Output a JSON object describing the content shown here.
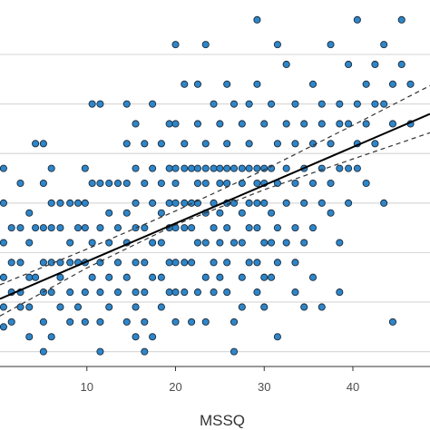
{
  "chart_data": {
    "type": "scatter",
    "xlabel": "MSSQ",
    "ylabel": "",
    "x_ticks": [
      10,
      20,
      30,
      40
    ],
    "xlim": [
      0.2,
      48.7
    ],
    "ylim": [
      -0.3,
      7.1
    ],
    "y_gridlines": [
      0,
      1,
      2,
      3,
      4,
      5,
      6
    ],
    "grid": "horizontal",
    "colors": {
      "point_fill": "#2e86c9",
      "point_stroke": "#1b2a3a",
      "line": "#000000",
      "ci": "#333333",
      "grid": "#d9d9d9",
      "axis": "#333333"
    },
    "regression": {
      "intercept": 1.05,
      "slope": 0.077
    },
    "confidence_band": [
      {
        "x": 0.2,
        "lower": 0.72,
        "upper": 1.35
      },
      {
        "x": 10,
        "lower": 1.69,
        "upper": 2.07
      },
      {
        "x": 20,
        "lower": 2.56,
        "upper": 2.84
      },
      {
        "x": 30,
        "lower": 3.27,
        "upper": 3.67
      },
      {
        "x": 40,
        "lower": 3.89,
        "upper": 4.57
      },
      {
        "x": 48.7,
        "lower": 4.42,
        "upper": 5.37
      }
    ],
    "points": [
      {
        "x": 0.6,
        "y": 3.7
      },
      {
        "x": 0.6,
        "y": 3
      },
      {
        "x": 0.6,
        "y": 2.2
      },
      {
        "x": 0.6,
        "y": 1.5
      },
      {
        "x": 0.6,
        "y": 0.9
      },
      {
        "x": 0.6,
        "y": 0.5
      },
      {
        "x": 1.5,
        "y": 2.5
      },
      {
        "x": 1.5,
        "y": 1.8
      },
      {
        "x": 1.5,
        "y": 1.2
      },
      {
        "x": 1.5,
        "y": 0.6
      },
      {
        "x": 2.5,
        "y": 3.4
      },
      {
        "x": 2.5,
        "y": 2.5
      },
      {
        "x": 2.5,
        "y": 1.8
      },
      {
        "x": 2.5,
        "y": 1.2
      },
      {
        "x": 2.5,
        "y": 0.9
      },
      {
        "x": 3.5,
        "y": 2.8
      },
      {
        "x": 3.5,
        "y": 2.2
      },
      {
        "x": 3.5,
        "y": 1.5
      },
      {
        "x": 3.5,
        "y": 0.9
      },
      {
        "x": 3.5,
        "y": 0.3
      },
      {
        "x": 4.2,
        "y": 4.2
      },
      {
        "x": 4.2,
        "y": 2.5
      },
      {
        "x": 4.2,
        "y": 1.5
      },
      {
        "x": 5.1,
        "y": 4.2
      },
      {
        "x": 5.1,
        "y": 3.4
      },
      {
        "x": 5.1,
        "y": 2.5
      },
      {
        "x": 5.1,
        "y": 1.8
      },
      {
        "x": 5.1,
        "y": 1.2
      },
      {
        "x": 5.1,
        "y": 0.6
      },
      {
        "x": 5.1,
        "y": 0
      },
      {
        "x": 6,
        "y": 3.7
      },
      {
        "x": 6,
        "y": 3
      },
      {
        "x": 6,
        "y": 2.5
      },
      {
        "x": 6,
        "y": 1.8
      },
      {
        "x": 6,
        "y": 1.2
      },
      {
        "x": 6,
        "y": 0.3
      },
      {
        "x": 7,
        "y": 3
      },
      {
        "x": 7,
        "y": 2.5
      },
      {
        "x": 7,
        "y": 1.8
      },
      {
        "x": 7,
        "y": 1.5
      },
      {
        "x": 7,
        "y": 0.9
      },
      {
        "x": 8.1,
        "y": 3
      },
      {
        "x": 8.1,
        "y": 2.2
      },
      {
        "x": 8.1,
        "y": 1.8
      },
      {
        "x": 8.1,
        "y": 1.2
      },
      {
        "x": 8.1,
        "y": 0.6
      },
      {
        "x": 9,
        "y": 3
      },
      {
        "x": 9,
        "y": 2.5
      },
      {
        "x": 9,
        "y": 1.8
      },
      {
        "x": 9,
        "y": 0.9
      },
      {
        "x": 9.8,
        "y": 3.7
      },
      {
        "x": 9.8,
        "y": 3
      },
      {
        "x": 9.8,
        "y": 2.5
      },
      {
        "x": 9.8,
        "y": 1.8
      },
      {
        "x": 9.8,
        "y": 1.2
      },
      {
        "x": 9.8,
        "y": 0.6
      },
      {
        "x": 10.6,
        "y": 5
      },
      {
        "x": 10.6,
        "y": 3.4
      },
      {
        "x": 10.6,
        "y": 2.2
      },
      {
        "x": 10.6,
        "y": 1.5
      },
      {
        "x": 11.5,
        "y": 5
      },
      {
        "x": 11.5,
        "y": 3.4
      },
      {
        "x": 11.5,
        "y": 2.5
      },
      {
        "x": 11.5,
        "y": 1.8
      },
      {
        "x": 11.5,
        "y": 1.2
      },
      {
        "x": 11.5,
        "y": 0.6
      },
      {
        "x": 11.5,
        "y": 0
      },
      {
        "x": 12.5,
        "y": 3.4
      },
      {
        "x": 12.5,
        "y": 2.8
      },
      {
        "x": 12.5,
        "y": 2.2
      },
      {
        "x": 12.5,
        "y": 1.5
      },
      {
        "x": 12.5,
        "y": 0.9
      },
      {
        "x": 13.5,
        "y": 3.4
      },
      {
        "x": 13.5,
        "y": 2.5
      },
      {
        "x": 13.5,
        "y": 1.8
      },
      {
        "x": 13.5,
        "y": 1.2
      },
      {
        "x": 14.5,
        "y": 5
      },
      {
        "x": 14.5,
        "y": 4.2
      },
      {
        "x": 14.5,
        "y": 3.4
      },
      {
        "x": 14.5,
        "y": 2.8
      },
      {
        "x": 14.5,
        "y": 2.2
      },
      {
        "x": 14.5,
        "y": 1.5
      },
      {
        "x": 14.5,
        "y": 0.6
      },
      {
        "x": 15.5,
        "y": 4.6
      },
      {
        "x": 15.5,
        "y": 3.7
      },
      {
        "x": 15.5,
        "y": 3
      },
      {
        "x": 15.5,
        "y": 2.5
      },
      {
        "x": 15.5,
        "y": 1.8
      },
      {
        "x": 15.5,
        "y": 1.2
      },
      {
        "x": 15.5,
        "y": 0.9
      },
      {
        "x": 15.5,
        "y": 0.3
      },
      {
        "x": 16.5,
        "y": 4.2
      },
      {
        "x": 16.5,
        "y": 3.4
      },
      {
        "x": 16.5,
        "y": 2.5
      },
      {
        "x": 16.5,
        "y": 1.8
      },
      {
        "x": 16.5,
        "y": 1.2
      },
      {
        "x": 16.5,
        "y": 0.6
      },
      {
        "x": 16.5,
        "y": 0
      },
      {
        "x": 17.4,
        "y": 5
      },
      {
        "x": 17.4,
        "y": 3.7
      },
      {
        "x": 17.4,
        "y": 3
      },
      {
        "x": 17.4,
        "y": 2.2
      },
      {
        "x": 17.4,
        "y": 1.5
      },
      {
        "x": 17.4,
        "y": 0.3
      },
      {
        "x": 18.4,
        "y": 4.2
      },
      {
        "x": 18.4,
        "y": 3.4
      },
      {
        "x": 18.4,
        "y": 2.8
      },
      {
        "x": 18.4,
        "y": 2.2
      },
      {
        "x": 18.4,
        "y": 1.5
      },
      {
        "x": 18.4,
        "y": 0.9
      },
      {
        "x": 19.3,
        "y": 4.6
      },
      {
        "x": 19.3,
        "y": 3.7
      },
      {
        "x": 19.3,
        "y": 3
      },
      {
        "x": 19.3,
        "y": 2.5
      },
      {
        "x": 19.3,
        "y": 1.8
      },
      {
        "x": 19.3,
        "y": 1.2
      },
      {
        "x": 20,
        "y": 6.2
      },
      {
        "x": 20,
        "y": 4.6
      },
      {
        "x": 20,
        "y": 3.7
      },
      {
        "x": 20,
        "y": 3.4
      },
      {
        "x": 20,
        "y": 3
      },
      {
        "x": 20,
        "y": 2.5
      },
      {
        "x": 20,
        "y": 1.8
      },
      {
        "x": 20,
        "y": 1.2
      },
      {
        "x": 20,
        "y": 0.6
      },
      {
        "x": 21,
        "y": 5.4
      },
      {
        "x": 21,
        "y": 4.2
      },
      {
        "x": 21,
        "y": 3.7
      },
      {
        "x": 21,
        "y": 3
      },
      {
        "x": 21,
        "y": 2.5
      },
      {
        "x": 21,
        "y": 1.8
      },
      {
        "x": 21,
        "y": 1.2
      },
      {
        "x": 21.8,
        "y": 3.7
      },
      {
        "x": 21.8,
        "y": 3
      },
      {
        "x": 21.8,
        "y": 2.5
      },
      {
        "x": 21.8,
        "y": 1.8
      },
      {
        "x": 21.8,
        "y": 0.6
      },
      {
        "x": 22.5,
        "y": 5.4
      },
      {
        "x": 22.5,
        "y": 4.6
      },
      {
        "x": 22.5,
        "y": 3.7
      },
      {
        "x": 22.5,
        "y": 3.4
      },
      {
        "x": 22.5,
        "y": 3
      },
      {
        "x": 22.5,
        "y": 2.2
      },
      {
        "x": 22.5,
        "y": 1.2
      },
      {
        "x": 23.4,
        "y": 6.2
      },
      {
        "x": 23.4,
        "y": 4.2
      },
      {
        "x": 23.4,
        "y": 3.7
      },
      {
        "x": 23.4,
        "y": 3.4
      },
      {
        "x": 23.4,
        "y": 2.8
      },
      {
        "x": 23.4,
        "y": 2.2
      },
      {
        "x": 23.4,
        "y": 1.5
      },
      {
        "x": 23.4,
        "y": 0.6
      },
      {
        "x": 24.3,
        "y": 5
      },
      {
        "x": 24.3,
        "y": 3.7
      },
      {
        "x": 24.3,
        "y": 3
      },
      {
        "x": 24.3,
        "y": 2.5
      },
      {
        "x": 24.3,
        "y": 1.8
      },
      {
        "x": 24.3,
        "y": 1.2
      },
      {
        "x": 25,
        "y": 4.6
      },
      {
        "x": 25,
        "y": 3.7
      },
      {
        "x": 25,
        "y": 3.4
      },
      {
        "x": 25,
        "y": 2.8
      },
      {
        "x": 25,
        "y": 2.2
      },
      {
        "x": 25,
        "y": 1.5
      },
      {
        "x": 25.8,
        "y": 5.4
      },
      {
        "x": 25.8,
        "y": 4.2
      },
      {
        "x": 25.8,
        "y": 3.7
      },
      {
        "x": 25.8,
        "y": 3.4
      },
      {
        "x": 25.8,
        "y": 3
      },
      {
        "x": 25.8,
        "y": 2.5
      },
      {
        "x": 25.8,
        "y": 1.8
      },
      {
        "x": 25.8,
        "y": 1.2
      },
      {
        "x": 26.6,
        "y": 5
      },
      {
        "x": 26.6,
        "y": 3.7
      },
      {
        "x": 26.6,
        "y": 3
      },
      {
        "x": 26.6,
        "y": 2.2
      },
      {
        "x": 26.6,
        "y": 0.6
      },
      {
        "x": 26.6,
        "y": 0
      },
      {
        "x": 27.5,
        "y": 4.6
      },
      {
        "x": 27.5,
        "y": 3.7
      },
      {
        "x": 27.5,
        "y": 3.4
      },
      {
        "x": 27.5,
        "y": 2.8
      },
      {
        "x": 27.5,
        "y": 2.2
      },
      {
        "x": 27.5,
        "y": 1.5
      },
      {
        "x": 27.5,
        "y": 0.9
      },
      {
        "x": 28.3,
        "y": 5
      },
      {
        "x": 28.3,
        "y": 4.2
      },
      {
        "x": 28.3,
        "y": 3.7
      },
      {
        "x": 28.3,
        "y": 3
      },
      {
        "x": 28.3,
        "y": 2.5
      },
      {
        "x": 28.3,
        "y": 1.8
      },
      {
        "x": 29.2,
        "y": 6.7
      },
      {
        "x": 29.2,
        "y": 5.4
      },
      {
        "x": 29.2,
        "y": 3.7
      },
      {
        "x": 29.2,
        "y": 3.4
      },
      {
        "x": 29.2,
        "y": 3
      },
      {
        "x": 29.2,
        "y": 2.5
      },
      {
        "x": 29.2,
        "y": 1.8
      },
      {
        "x": 29.2,
        "y": 1.2
      },
      {
        "x": 30,
        "y": 4.6
      },
      {
        "x": 30,
        "y": 3.7
      },
      {
        "x": 30,
        "y": 3.4
      },
      {
        "x": 30,
        "y": 3
      },
      {
        "x": 30,
        "y": 2.2
      },
      {
        "x": 30,
        "y": 1.5
      },
      {
        "x": 30,
        "y": 0.9
      },
      {
        "x": 30.8,
        "y": 5
      },
      {
        "x": 30.8,
        "y": 3.7
      },
      {
        "x": 30.8,
        "y": 2.8
      },
      {
        "x": 30.8,
        "y": 2.2
      },
      {
        "x": 30.8,
        "y": 1.5
      },
      {
        "x": 31.5,
        "y": 6.2
      },
      {
        "x": 31.5,
        "y": 4.2
      },
      {
        "x": 31.5,
        "y": 3.4
      },
      {
        "x": 31.5,
        "y": 2.5
      },
      {
        "x": 31.5,
        "y": 1.8
      },
      {
        "x": 31.5,
        "y": 0.3
      },
      {
        "x": 32.5,
        "y": 5.8
      },
      {
        "x": 32.5,
        "y": 4.6
      },
      {
        "x": 32.5,
        "y": 3.7
      },
      {
        "x": 32.5,
        "y": 3
      },
      {
        "x": 32.5,
        "y": 2.2
      },
      {
        "x": 33.5,
        "y": 5
      },
      {
        "x": 33.5,
        "y": 4.2
      },
      {
        "x": 33.5,
        "y": 3.4
      },
      {
        "x": 33.5,
        "y": 2.5
      },
      {
        "x": 33.5,
        "y": 1.8
      },
      {
        "x": 33.5,
        "y": 1.2
      },
      {
        "x": 34.5,
        "y": 4.6
      },
      {
        "x": 34.5,
        "y": 3.7
      },
      {
        "x": 34.5,
        "y": 3
      },
      {
        "x": 34.5,
        "y": 2.2
      },
      {
        "x": 34.5,
        "y": 0.9
      },
      {
        "x": 35.5,
        "y": 5.4
      },
      {
        "x": 35.5,
        "y": 4.2
      },
      {
        "x": 35.5,
        "y": 3.4
      },
      {
        "x": 35.5,
        "y": 2.5
      },
      {
        "x": 35.5,
        "y": 1.5
      },
      {
        "x": 36.5,
        "y": 5
      },
      {
        "x": 36.5,
        "y": 4.6
      },
      {
        "x": 36.5,
        "y": 3.7
      },
      {
        "x": 36.5,
        "y": 3
      },
      {
        "x": 36.5,
        "y": 0.9
      },
      {
        "x": 37.5,
        "y": 6.2
      },
      {
        "x": 37.5,
        "y": 4.2
      },
      {
        "x": 37.5,
        "y": 3.4
      },
      {
        "x": 37.5,
        "y": 2.8
      },
      {
        "x": 38.5,
        "y": 5
      },
      {
        "x": 38.5,
        "y": 4.6
      },
      {
        "x": 38.5,
        "y": 3.7
      },
      {
        "x": 38.5,
        "y": 2.2
      },
      {
        "x": 38.5,
        "y": 1.2
      },
      {
        "x": 39.5,
        "y": 5.8
      },
      {
        "x": 39.5,
        "y": 4.6
      },
      {
        "x": 39.5,
        "y": 3.7
      },
      {
        "x": 39.5,
        "y": 3
      },
      {
        "x": 40.5,
        "y": 6.7
      },
      {
        "x": 40.5,
        "y": 5
      },
      {
        "x": 40.5,
        "y": 4.2
      },
      {
        "x": 40.5,
        "y": 3.7
      },
      {
        "x": 41.5,
        "y": 5.4
      },
      {
        "x": 41.5,
        "y": 4.6
      },
      {
        "x": 41.5,
        "y": 3.4
      },
      {
        "x": 42.5,
        "y": 5.8
      },
      {
        "x": 42.5,
        "y": 5
      },
      {
        "x": 42.5,
        "y": 4.2
      },
      {
        "x": 43.5,
        "y": 6.2
      },
      {
        "x": 43.5,
        "y": 5
      },
      {
        "x": 43.5,
        "y": 3
      },
      {
        "x": 44.5,
        "y": 5.4
      },
      {
        "x": 44.5,
        "y": 4.6
      },
      {
        "x": 44.5,
        "y": 0.6
      },
      {
        "x": 45.5,
        "y": 6.7
      },
      {
        "x": 45.5,
        "y": 5.8
      },
      {
        "x": 46.5,
        "y": 5.4
      },
      {
        "x": 46.5,
        "y": 4.6
      }
    ]
  }
}
